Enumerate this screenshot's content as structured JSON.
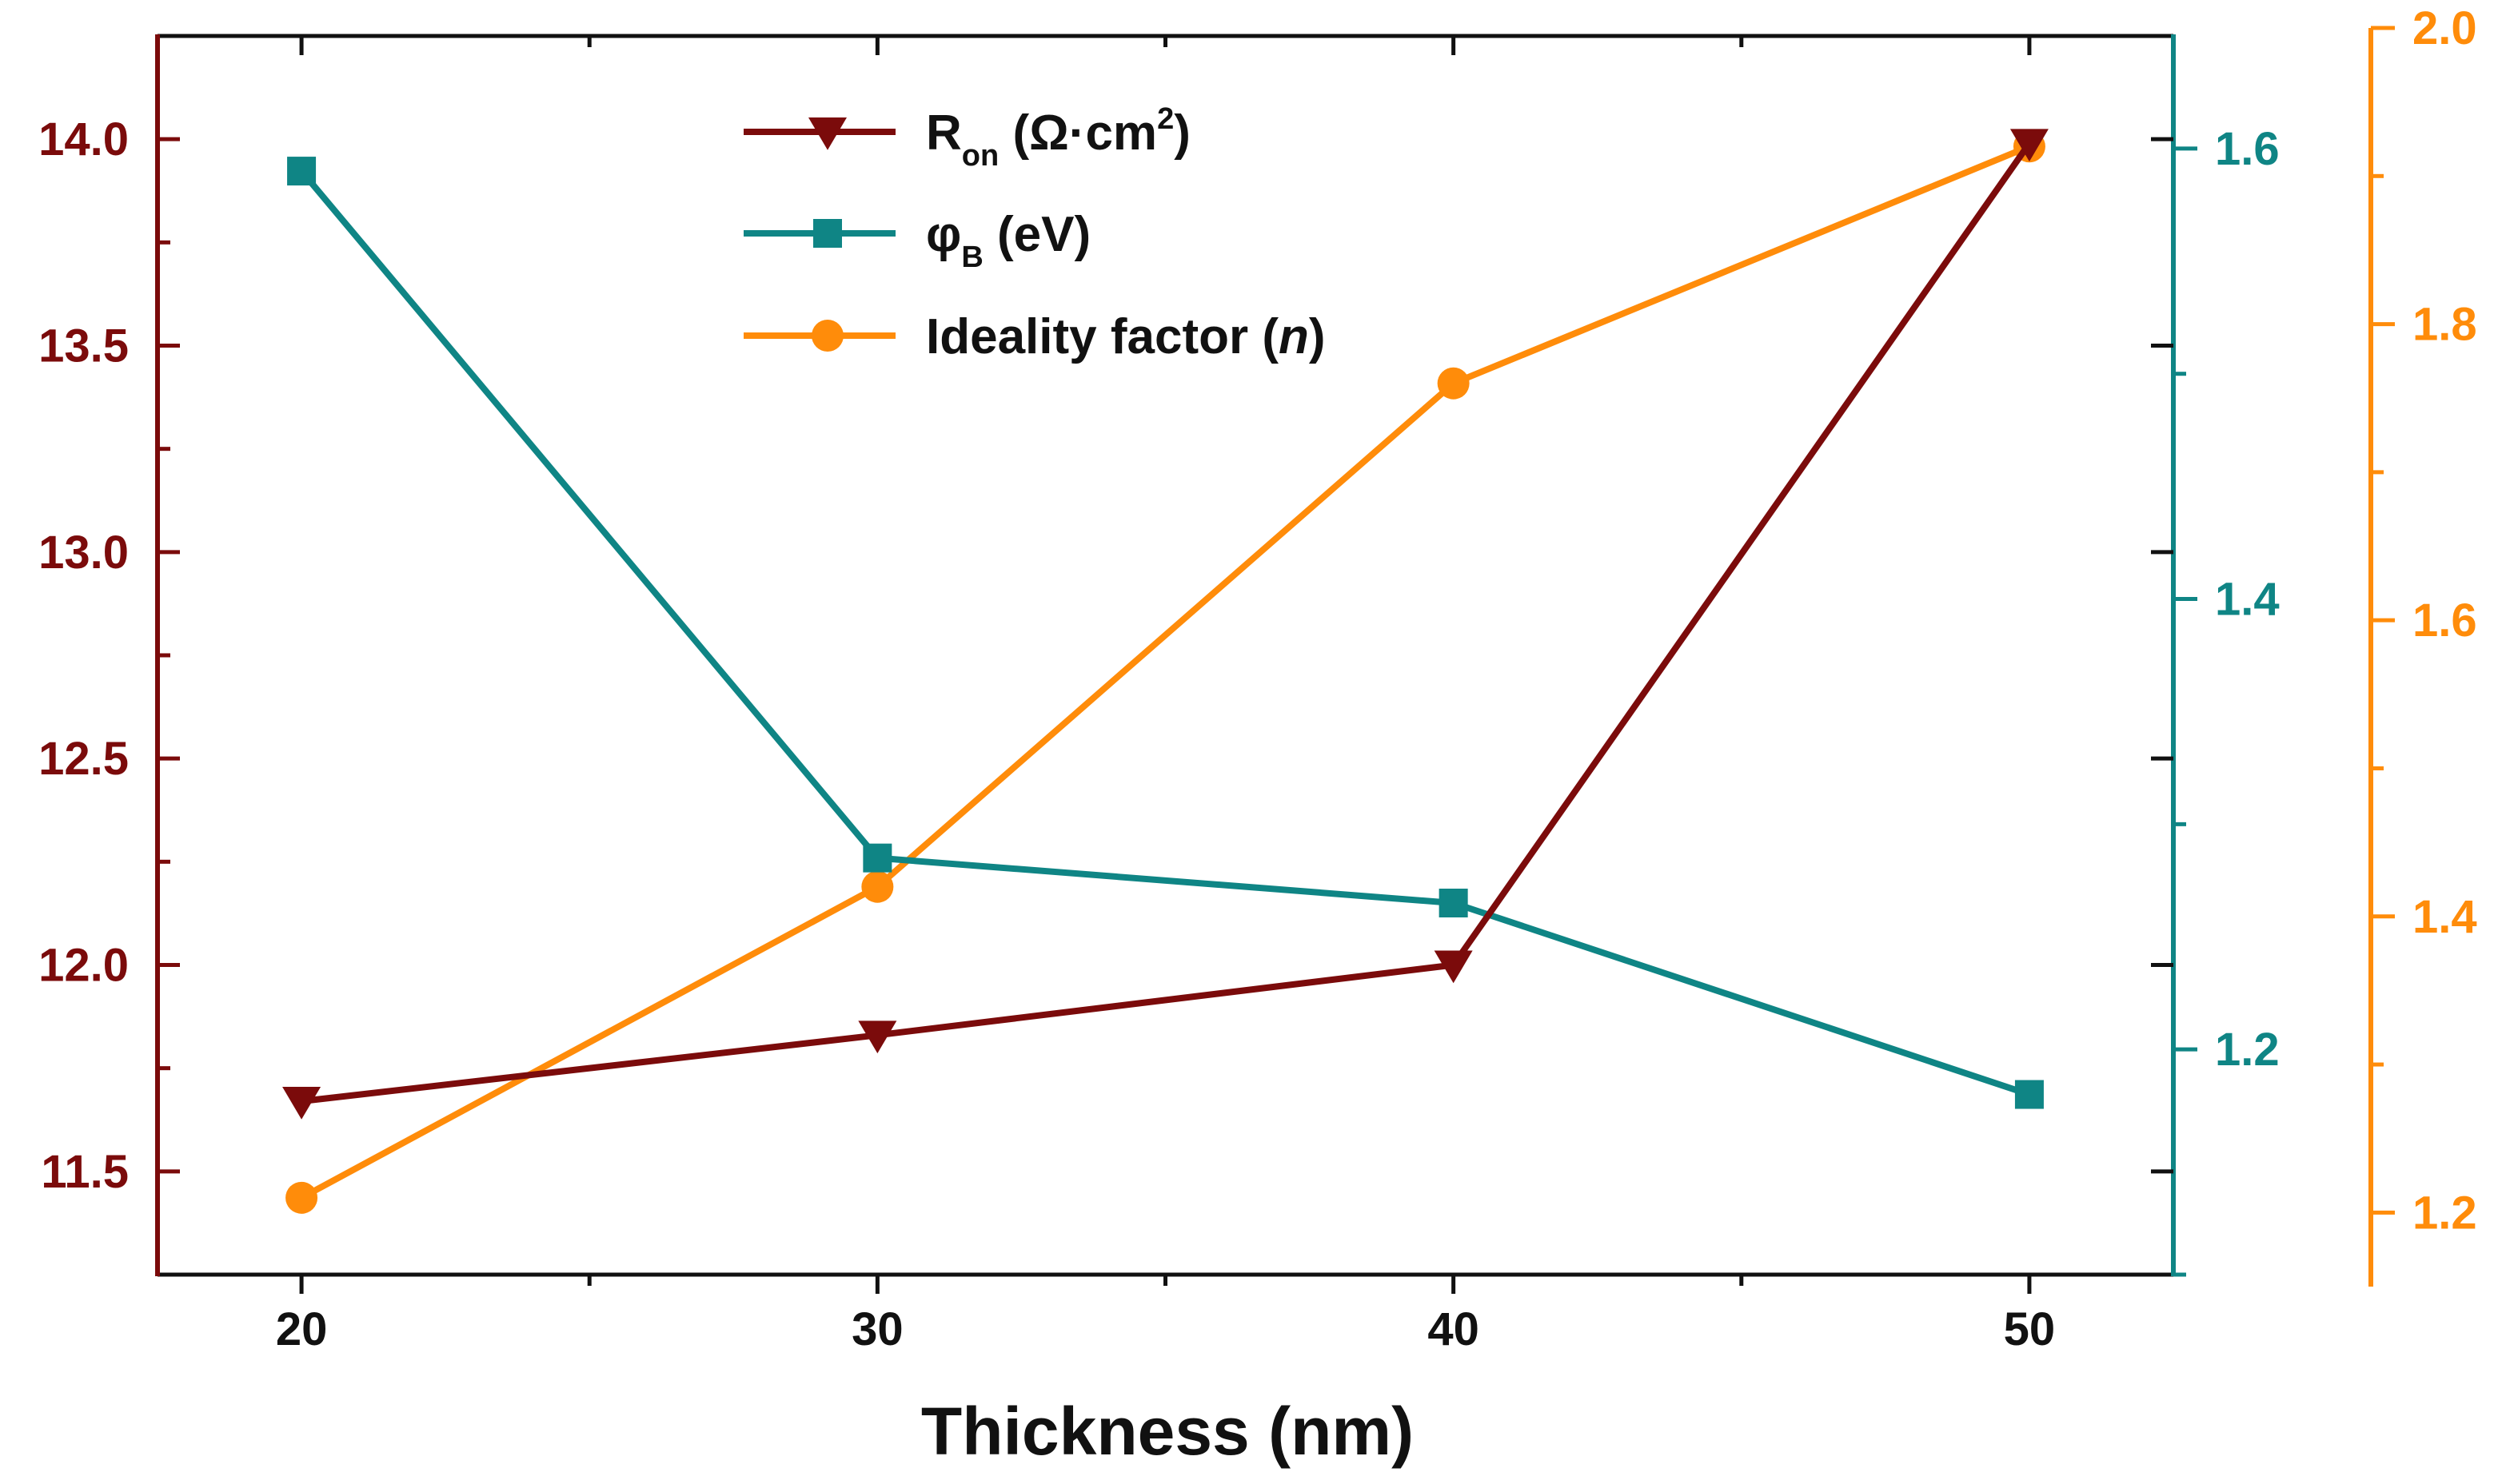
{
  "chart_data": {
    "type": "line",
    "title": "",
    "xlabel": "Thickness (nm)",
    "x": [
      20,
      30,
      40,
      50
    ],
    "xlim": [
      17.5,
      52.5
    ],
    "x_ticks": [
      20,
      30,
      40,
      50
    ],
    "x_tick_labels": [
      "20",
      "30",
      "40",
      "50"
    ],
    "grid": false,
    "legend_position": "top-center",
    "axes": {
      "left": {
        "color": "#7b0b0b",
        "ylim": [
          11.25,
          14.25
        ],
        "ticks": [
          11.5,
          12.0,
          12.5,
          13.0,
          13.5,
          14.0
        ],
        "tick_labels": [
          "11.5",
          "12.0",
          "12.5",
          "13.0",
          "13.5",
          "14.0"
        ]
      },
      "right_inner": {
        "color": "#0f8585",
        "ylim": [
          1.1,
          1.65
        ],
        "ticks": [
          1.2,
          1.4,
          1.6
        ],
        "tick_labels": [
          "1.2",
          "1.4",
          "1.6"
        ]
      },
      "right_outer": {
        "color": "#ff8c0a",
        "ylim": [
          1.15,
          2.0
        ],
        "ticks": [
          1.2,
          1.4,
          1.6,
          1.8,
          2.0
        ],
        "tick_labels": [
          "1.2",
          "1.4",
          "1.6",
          "1.8",
          "2.0"
        ]
      }
    },
    "series": [
      {
        "name": "R_on (Ω·cm²)",
        "legend_main": "R",
        "legend_sub": "on",
        "legend_rest": " (Ω·cm",
        "legend_sup": "2",
        "legend_close": ")",
        "axis": "left",
        "color": "#7b0b0b",
        "marker": "triangle-down",
        "values": [
          11.67,
          11.83,
          12.0,
          13.99
        ]
      },
      {
        "name": "φB (eV)",
        "legend_main": "φ",
        "legend_sub": "B",
        "legend_rest": " (eV)",
        "axis": "right_inner",
        "color": "#0f8585",
        "marker": "square",
        "values": [
          1.59,
          1.285,
          1.265,
          1.18
        ]
      },
      {
        "name": "Ideality factor (n)",
        "legend_main": "Ideality factor (",
        "legend_italic": "n",
        "legend_close": ")",
        "axis": "right_outer",
        "color": "#ff8c0a",
        "marker": "circle",
        "values": [
          1.21,
          1.42,
          1.76,
          1.92
        ]
      }
    ]
  }
}
